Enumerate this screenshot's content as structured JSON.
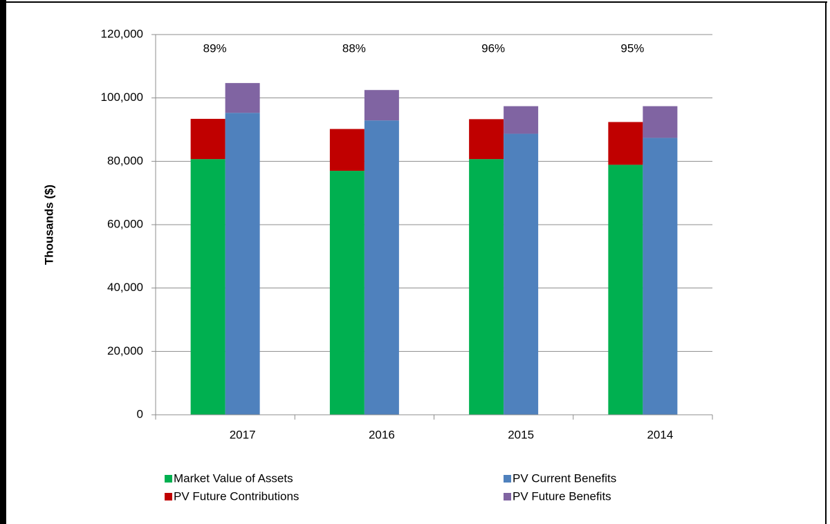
{
  "chart_data": {
    "type": "stacked-grouped-bar",
    "y_label": "Thousands ($)",
    "categories": [
      "2017",
      "2016",
      "2015",
      "2014"
    ],
    "series": [
      {
        "name": "Market Value of Assets",
        "color": "#00b050",
        "stack": "left",
        "values": [
          80700,
          77000,
          80700,
          78900
        ]
      },
      {
        "name": "PV Future Contributions",
        "color": "#c00000",
        "stack": "left",
        "values": [
          12700,
          13200,
          12600,
          13500
        ]
      },
      {
        "name": "PV Current Benefits",
        "color": "#4f81bd",
        "stack": "right",
        "values": [
          95300,
          92900,
          88700,
          87400
        ]
      },
      {
        "name": "PV Future Benefits",
        "color": "#8064a2",
        "stack": "right",
        "values": [
          9400,
          9600,
          8700,
          10000
        ]
      }
    ],
    "funded_ratio": {
      "values": [
        89,
        88,
        96,
        95
      ],
      "value_labels": [
        "89%",
        "88%",
        "96%",
        "95%"
      ]
    },
    "ylim": [
      0,
      120000
    ],
    "yticks": [
      {
        "value": 0,
        "label": "0"
      },
      {
        "value": 20000,
        "label": "20,000"
      },
      {
        "value": 40000,
        "label": "40,000"
      },
      {
        "value": 60000,
        "label": "60,000"
      },
      {
        "value": 80000,
        "label": "80,000"
      },
      {
        "value": 100000,
        "label": "100,000"
      },
      {
        "value": 120000,
        "label": "120,000"
      }
    ],
    "grid": true,
    "legend": "bottom"
  }
}
